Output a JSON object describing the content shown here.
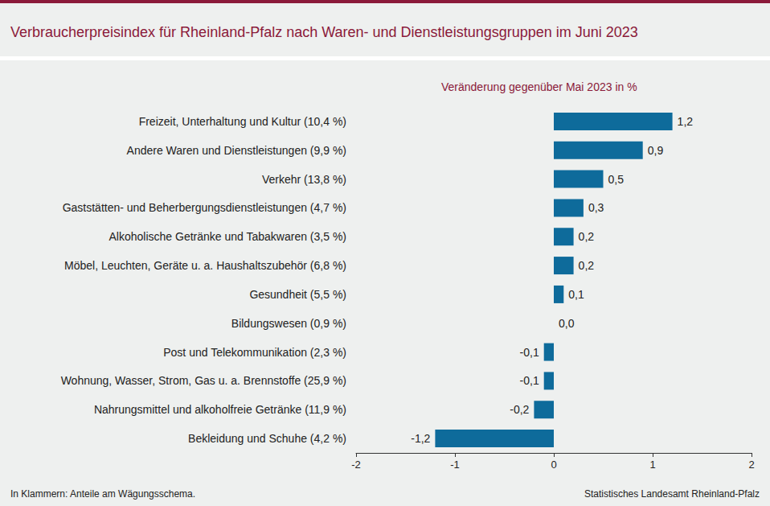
{
  "chart_data": {
    "type": "bar",
    "orientation": "horizontal",
    "title": "Verbraucherpreisindex für Rheinland-Pfalz nach Waren- und Dienstleistungsgruppen im Juni 2023",
    "subtitle": "Veränderung gegenüber Mai 2023 in %",
    "categories": [
      "Freizeit, Unterhaltung und Kultur (10,4 %)",
      "Andere Waren und Dienstleistungen (9,9 %)",
      "Verkehr (13,8 %)",
      "Gaststätten- und Beherbergungsdienstleistungen (4,7 %)",
      "Alkoholische Getränke und Tabakwaren (3,5 %)",
      "Möbel, Leuchten, Geräte u. a. Haushaltszubehör (6,8 %)",
      "Gesundheit (5,5 %)",
      "Bildungswesen (0,9 %)",
      "Post und Telekommunikation (2,3 %)",
      "Wohnung, Wasser, Strom, Gas u. a. Brennstoffe (25,9 %)",
      "Nahrungsmittel und alkoholfreie Getränke (11,9 %)",
      "Bekleidung und Schuhe (4,2 %)"
    ],
    "values": [
      1.2,
      0.9,
      0.5,
      0.3,
      0.2,
      0.2,
      0.1,
      0.0,
      -0.1,
      -0.1,
      -0.2,
      -1.2
    ],
    "value_labels": [
      "1,2",
      "0,9",
      "0,5",
      "0,3",
      "0,2",
      "0,2",
      "0,1",
      "0,0",
      "-0,1",
      "-0,1",
      "-0,2",
      "-1,2"
    ],
    "color": "#0e6b9b",
    "xlim": [
      -2,
      2
    ],
    "xticks": [
      -2,
      -1,
      0,
      1,
      2
    ],
    "grid": false,
    "data_labels": true,
    "annotations": [
      "In Klammern: Anteile am Wägungsschema.",
      "Statistisches Landesamt Rheinland-Pfalz"
    ]
  }
}
